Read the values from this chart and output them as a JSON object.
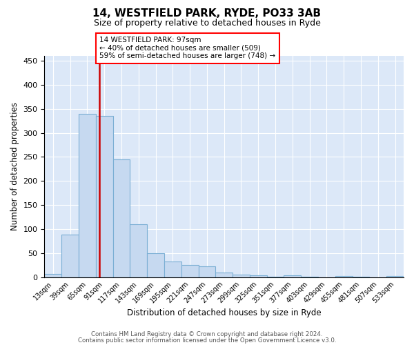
{
  "title": "14, WESTFIELD PARK, RYDE, PO33 3AB",
  "subtitle": "Size of property relative to detached houses in Ryde",
  "xlabel": "Distribution of detached houses by size in Ryde",
  "ylabel": "Number of detached properties",
  "bar_color": "#c6d9f0",
  "bar_edge_color": "#7bafd4",
  "background_color": "#dce8f8",
  "grid_color": "#ffffff",
  "annotation_text": "14 WESTFIELD PARK: 97sqm\n← 40% of detached houses are smaller (509)\n59% of semi-detached houses are larger (748) →",
  "vline_x": 97,
  "vline_color": "#cc0000",
  "categories": [
    "13sqm",
    "39sqm",
    "65sqm",
    "91sqm",
    "117sqm",
    "143sqm",
    "169sqm",
    "195sqm",
    "221sqm",
    "247sqm",
    "273sqm",
    "299sqm",
    "325sqm",
    "351sqm",
    "377sqm",
    "403sqm",
    "429sqm",
    "455sqm",
    "481sqm",
    "507sqm",
    "533sqm"
  ],
  "bin_left_edges": [
    13,
    39,
    65,
    91,
    117,
    143,
    169,
    195,
    221,
    247,
    273,
    299,
    325,
    351,
    377,
    403,
    429,
    455,
    481,
    507,
    533
  ],
  "bin_width": 26,
  "values": [
    7,
    88,
    340,
    335,
    245,
    110,
    50,
    32,
    26,
    22,
    9,
    5,
    4,
    1,
    4,
    1,
    0,
    3,
    1,
    0,
    3
  ],
  "ylim": [
    0,
    460
  ],
  "yticks": [
    0,
    50,
    100,
    150,
    200,
    250,
    300,
    350,
    400,
    450
  ],
  "footnote1": "Contains HM Land Registry data © Crown copyright and database right 2024.",
  "footnote2": "Contains public sector information licensed under the Open Government Licence v3.0."
}
